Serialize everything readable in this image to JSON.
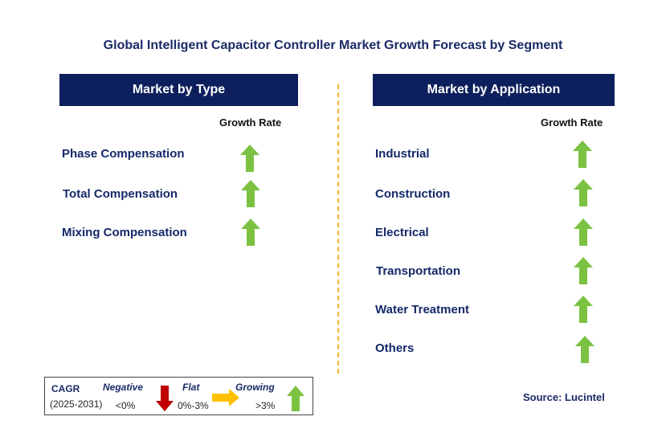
{
  "title": "Global Intelligent Capacitor Controller Market Growth Forecast by Segment",
  "left_panel": {
    "header": "Market by Type",
    "growth_rate_label": "Growth Rate",
    "items": [
      {
        "label": "Phase Compensation",
        "trend": "growing"
      },
      {
        "label": "Total Compensation",
        "trend": "growing"
      },
      {
        "label": "Mixing Compensation",
        "trend": "growing"
      }
    ]
  },
  "right_panel": {
    "header": "Market by Application",
    "growth_rate_label": "Growth Rate",
    "items": [
      {
        "label": "Industrial",
        "trend": "growing"
      },
      {
        "label": "Construction",
        "trend": "growing"
      },
      {
        "label": "Electrical",
        "trend": "growing"
      },
      {
        "label": "Transportation",
        "trend": "growing"
      },
      {
        "label": "Water Treatment",
        "trend": "growing"
      },
      {
        "label": "Others",
        "trend": "growing"
      }
    ]
  },
  "legend": {
    "cagr": "CAGR",
    "period": "(2025-2031)",
    "negative_label": "Negative",
    "negative_range": "<0%",
    "flat_label": "Flat",
    "flat_range": "0%-3%",
    "growing_label": "Growing",
    "growing_range": ">3%"
  },
  "source": "Source: Lucintel",
  "colors": {
    "header_bg": "#0d1f5c",
    "growing_arrow": "#7cc242",
    "negative_arrow": "#c00000",
    "flat_arrow": "#ffc000",
    "divider": "#f0b429"
  },
  "icons": {
    "growing": "up-arrow-icon",
    "negative": "down-arrow-icon",
    "flat": "right-arrow-icon"
  }
}
